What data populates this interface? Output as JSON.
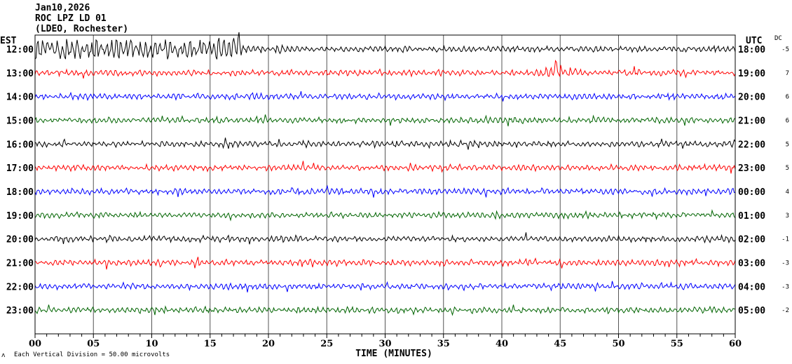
{
  "header": {
    "date": "Jan10,2026",
    "station": "ROC LPZ LD 01",
    "network": "(LDEO, Rochester)"
  },
  "left_axis_title": "EST",
  "right_axis_title": "UTC",
  "dc_title": "DC",
  "footer": {
    "mark": "ʌ",
    "scale_text": "Each Vertical Division =   50.00 microvolts"
  },
  "chart_data": {
    "type": "line",
    "xlabel": "TIME (MINUTES)",
    "xlim": [
      0,
      60
    ],
    "x_ticks": [
      "00",
      "05",
      "10",
      "15",
      "20",
      "25",
      "30",
      "35",
      "40",
      "45",
      "50",
      "55",
      "60"
    ],
    "grid": true,
    "trace_colors": [
      "#000000",
      "#ff0000",
      "#0000ff",
      "#006400"
    ],
    "rows": [
      {
        "est": "12:00",
        "utc": "18:00",
        "dc": "-5",
        "color": "#000000",
        "amplitude": "high until ~18 min, then low"
      },
      {
        "est": "13:00",
        "utc": "19:00",
        "dc": "7",
        "color": "#ff0000",
        "event_minute": 44.8
      },
      {
        "est": "14:00",
        "utc": "20:00",
        "dc": "6",
        "color": "#0000ff"
      },
      {
        "est": "15:00",
        "utc": "21:00",
        "dc": "6",
        "color": "#006400"
      },
      {
        "est": "16:00",
        "utc": "22:00",
        "dc": "5",
        "color": "#000000"
      },
      {
        "est": "17:00",
        "utc": "23:00",
        "dc": "5",
        "color": "#ff0000"
      },
      {
        "est": "18:00",
        "utc": "00:00",
        "dc": "4",
        "color": "#0000ff"
      },
      {
        "est": "19:00",
        "utc": "01:00",
        "dc": "3",
        "color": "#006400"
      },
      {
        "est": "20:00",
        "utc": "02:00",
        "dc": "-1",
        "color": "#000000"
      },
      {
        "est": "21:00",
        "utc": "03:00",
        "dc": "-3",
        "color": "#ff0000"
      },
      {
        "est": "22:00",
        "utc": "04:00",
        "dc": "-3",
        "color": "#0000ff"
      },
      {
        "est": "23:00",
        "utc": "05:00",
        "dc": "-2",
        "color": "#006400"
      }
    ]
  }
}
